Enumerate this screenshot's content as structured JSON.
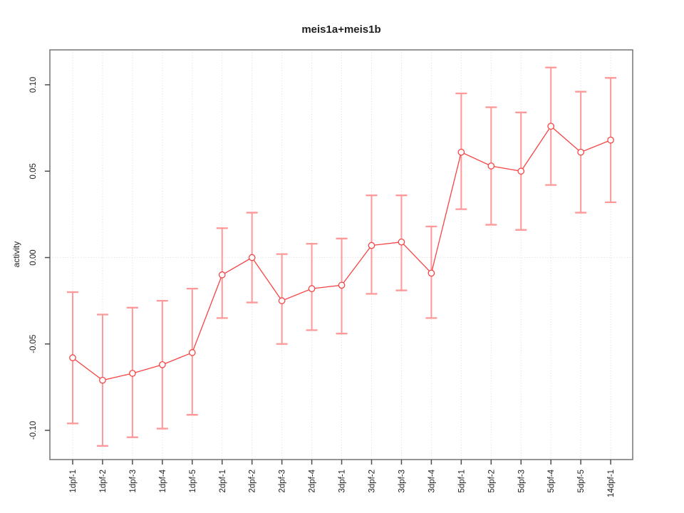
{
  "window": {
    "kind": "R-style statistical plot",
    "background": "#ffffff"
  },
  "colors": {
    "series": "#f54545",
    "error_bar": "#ff9898",
    "error_cap": "#ff9898",
    "grid": "#d9d9d9",
    "axis_box": "#7c7c7c",
    "tick": "#4d4d4d",
    "text": "#1f1f1f"
  },
  "chart_data": {
    "type": "line",
    "title": "meis1a+meis1b",
    "xlabel": "",
    "ylabel": "activity",
    "legend": "none",
    "grid": "dotted vertical gridline at every category; dotted horizontal line at y=0",
    "point_symbol": "open-circle",
    "error_bars": true,
    "ylim": [
      -0.115,
      0.118
    ],
    "yticks": [
      0.1,
      0.05,
      0.0,
      -0.05,
      -0.1
    ],
    "ytick_labels": [
      "0.10",
      "0.05",
      "0.00",
      "-0.05",
      "-0.10"
    ],
    "categories": [
      "1dpf-1",
      "1dpf-2",
      "1dpf-3",
      "1dpf-4",
      "1dpf-5",
      "2dpf-1",
      "2dpf-2",
      "2dpf-3",
      "2dpf-4",
      "3dpf-1",
      "3dpf-2",
      "3dpf-3",
      "3dpf-4",
      "5dpf-1",
      "5dpf-2",
      "5dpf-3",
      "5dpf-4",
      "5dpf-5",
      "14dpf-1"
    ],
    "series": [
      {
        "name": "activity",
        "values": [
          -0.058,
          -0.071,
          -0.067,
          -0.062,
          -0.055,
          -0.01,
          0.0,
          -0.025,
          -0.018,
          -0.016,
          0.007,
          0.009,
          -0.009,
          0.061,
          0.053,
          0.05,
          0.076,
          0.061,
          0.068
        ],
        "upper": [
          -0.02,
          -0.033,
          -0.029,
          -0.025,
          -0.018,
          0.017,
          0.026,
          0.002,
          0.008,
          0.011,
          0.036,
          0.036,
          0.018,
          0.095,
          0.087,
          0.084,
          0.11,
          0.096,
          0.104
        ],
        "lower": [
          -0.096,
          -0.109,
          -0.104,
          -0.099,
          -0.091,
          -0.035,
          -0.026,
          -0.05,
          -0.042,
          -0.044,
          -0.021,
          -0.019,
          -0.035,
          0.028,
          0.019,
          0.016,
          0.042,
          0.026,
          0.032
        ]
      }
    ]
  }
}
